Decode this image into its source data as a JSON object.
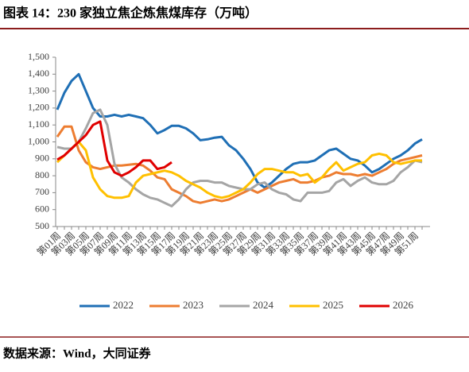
{
  "chart_data": {
    "type": "line",
    "title": "图表 14：230 家独立焦企炼焦煤库存（万吨）",
    "source": "数据来源：Wind，大同证券",
    "categories": [
      "第01周",
      null,
      "第03周",
      null,
      "第05周",
      null,
      "第07周",
      null,
      "第09周",
      null,
      "第11周",
      null,
      "第13周",
      null,
      "第15周",
      null,
      "第17周",
      null,
      "第19周",
      null,
      "第21周",
      null,
      "第23周",
      null,
      "第25周",
      null,
      "第27周",
      null,
      "第29周",
      null,
      "第31周",
      null,
      "第33周",
      null,
      "第35周",
      null,
      "第37周",
      null,
      "第39周",
      null,
      "第41周",
      null,
      "第43周",
      null,
      "第45周",
      null,
      "第47周",
      null,
      "第49周",
      null,
      "第51周",
      null
    ],
    "ylim": [
      500,
      1500
    ],
    "yticks": [
      500,
      600,
      700,
      800,
      900,
      {
        "value": 1000,
        "label": "1,000"
      },
      {
        "value": 1100,
        "label": "1,100"
      },
      {
        "value": 1200,
        "label": "1,200"
      },
      {
        "value": 1300,
        "label": "1,300"
      },
      {
        "value": 1400,
        "label": "1,400"
      },
      {
        "value": 1500,
        "label": "1,500"
      }
    ],
    "grid": false,
    "legend": "bottom",
    "series": [
      {
        "name": "2022",
        "color": "#1f6fb5",
        "values": [
          1190,
          1290,
          1360,
          1400,
          1300,
          1200,
          1150,
          1150,
          1160,
          1150,
          1160,
          1150,
          1140,
          1100,
          1050,
          1070,
          1095,
          1095,
          1080,
          1050,
          1010,
          1015,
          1025,
          1030,
          980,
          950,
          900,
          840,
          760,
          730,
          760,
          800,
          840,
          870,
          880,
          880,
          890,
          920,
          950,
          960,
          930,
          900,
          890,
          860,
          820,
          840,
          870,
          900,
          920,
          950,
          990,
          1015
        ]
      },
      {
        "name": "2023",
        "color": "#ed7d31",
        "values": [
          1030,
          1090,
          1090,
          950,
          880,
          850,
          840,
          850,
          860,
          860,
          865,
          870,
          860,
          830,
          790,
          780,
          720,
          700,
          680,
          650,
          640,
          650,
          660,
          650,
          660,
          680,
          700,
          720,
          700,
          720,
          740,
          760,
          770,
          780,
          760,
          760,
          770,
          790,
          800,
          820,
          810,
          810,
          800,
          810,
          800,
          820,
          840,
          870,
          890,
          900,
          910,
          920
        ]
      },
      {
        "name": "2024",
        "color": "#a5a5a5",
        "values": [
          970,
          960,
          960,
          1000,
          1080,
          1170,
          1190,
          1100,
          870,
          790,
          760,
          720,
          690,
          670,
          660,
          640,
          620,
          660,
          720,
          760,
          770,
          770,
          760,
          760,
          740,
          730,
          720,
          720,
          750,
          760,
          720,
          700,
          690,
          660,
          650,
          700,
          700,
          700,
          710,
          760,
          780,
          740,
          770,
          790,
          760,
          750,
          750,
          770,
          820,
          850,
          890,
          880
        ]
      },
      {
        "name": "2025",
        "color": "#ffc000",
        "values": [
          880,
          920,
          960,
          1000,
          950,
          790,
          720,
          680,
          670,
          670,
          680,
          760,
          800,
          810,
          820,
          830,
          820,
          800,
          770,
          750,
          730,
          700,
          680,
          670,
          680,
          700,
          720,
          760,
          810,
          840,
          840,
          830,
          820,
          820,
          800,
          810,
          760,
          790,
          840,
          880,
          830,
          850,
          870,
          880,
          920,
          930,
          920,
          880,
          870,
          880,
          890,
          890
        ]
      },
      {
        "name": "2026",
        "color": "#e00000",
        "values": [
          895,
          920,
          960,
          1000,
          1040,
          1100,
          1120,
          890,
          820,
          800,
          820,
          850,
          890,
          890,
          840,
          850,
          880,
          null,
          null,
          null,
          null,
          null,
          null,
          null,
          null,
          null,
          null,
          null,
          null,
          null,
          null,
          null,
          null,
          null,
          null,
          null,
          null,
          null,
          null,
          null,
          null,
          null,
          null,
          null,
          null,
          null,
          null,
          null,
          null,
          null,
          null,
          null
        ]
      }
    ]
  }
}
